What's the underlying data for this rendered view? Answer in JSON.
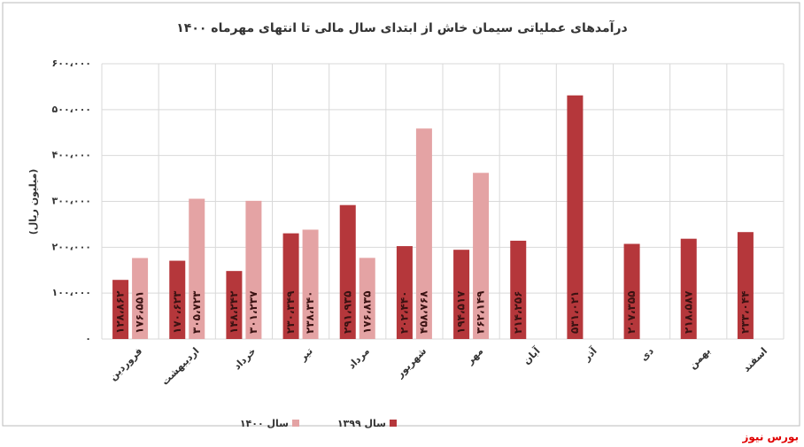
{
  "chart_data": {
    "type": "bar",
    "title": "درآمدهای عملیاتی سیمان خاش از ابتدای سال مالی تا انتهای مهرماه ۱۴۰۰",
    "y_label": "(میلیون ریال)",
    "source": "بورس نیوز",
    "categories": [
      "فروردین",
      "اردیبهشت",
      "خرداد",
      "تیر",
      "مرداد",
      "شهریور",
      "مهر",
      "آبان",
      "آذر",
      "دی",
      "بهمن",
      "اسفند"
    ],
    "series": [
      {
        "name": "سال ۱۳۹۹",
        "color": "#b5373b",
        "values": [
          128862,
          170623,
          148242,
          230349,
          291935,
          202440,
          194517,
          214256,
          531021,
          207355,
          218587,
          233044
        ],
        "value_labels": [
          "۱۲۸،۸۶۲",
          "۱۷۰،۶۲۳",
          "۱۴۸،۲۴۲",
          "۲۳۰،۳۴۹",
          "۲۹۱،۹۳۵",
          "۲۰۲،۴۴۰",
          "۱۹۴،۵۱۷",
          "۲۱۴،۲۵۶",
          "۵۳۱،۰۲۱",
          "۲۰۷،۳۵۵",
          "۲۱۸،۵۸۷",
          "۲۳۳،۰۴۴"
        ]
      },
      {
        "name": "سال ۱۴۰۰",
        "color": "#e4a3a4",
        "values": [
          176551,
          305723,
          301237,
          238340,
          176835,
          458768,
          362149,
          null,
          null,
          null,
          null,
          null
        ],
        "value_labels": [
          "۱۷۶،۵۵۱",
          "۳۰۵،۷۲۳",
          "۳۰۱،۲۳۷",
          "۲۳۸،۳۴۰",
          "۱۷۶،۸۳۵",
          "۴۵۸،۷۶۸",
          "۳۶۲،۱۴۹",
          null,
          null,
          null,
          null,
          null
        ]
      }
    ],
    "ylim": [
      0,
      600000
    ],
    "yticks": [
      {
        "value": 0,
        "label": "۰"
      },
      {
        "value": 100000,
        "label": "۱۰۰،۰۰۰"
      },
      {
        "value": 200000,
        "label": "۲۰۰،۰۰۰"
      },
      {
        "value": 300000,
        "label": "۳۰۰،۰۰۰"
      },
      {
        "value": 400000,
        "label": "۴۰۰،۰۰۰"
      },
      {
        "value": 500000,
        "label": "۵۰۰،۰۰۰"
      },
      {
        "value": 600000,
        "label": "۶۰۰،۰۰۰"
      }
    ],
    "grid": true
  }
}
